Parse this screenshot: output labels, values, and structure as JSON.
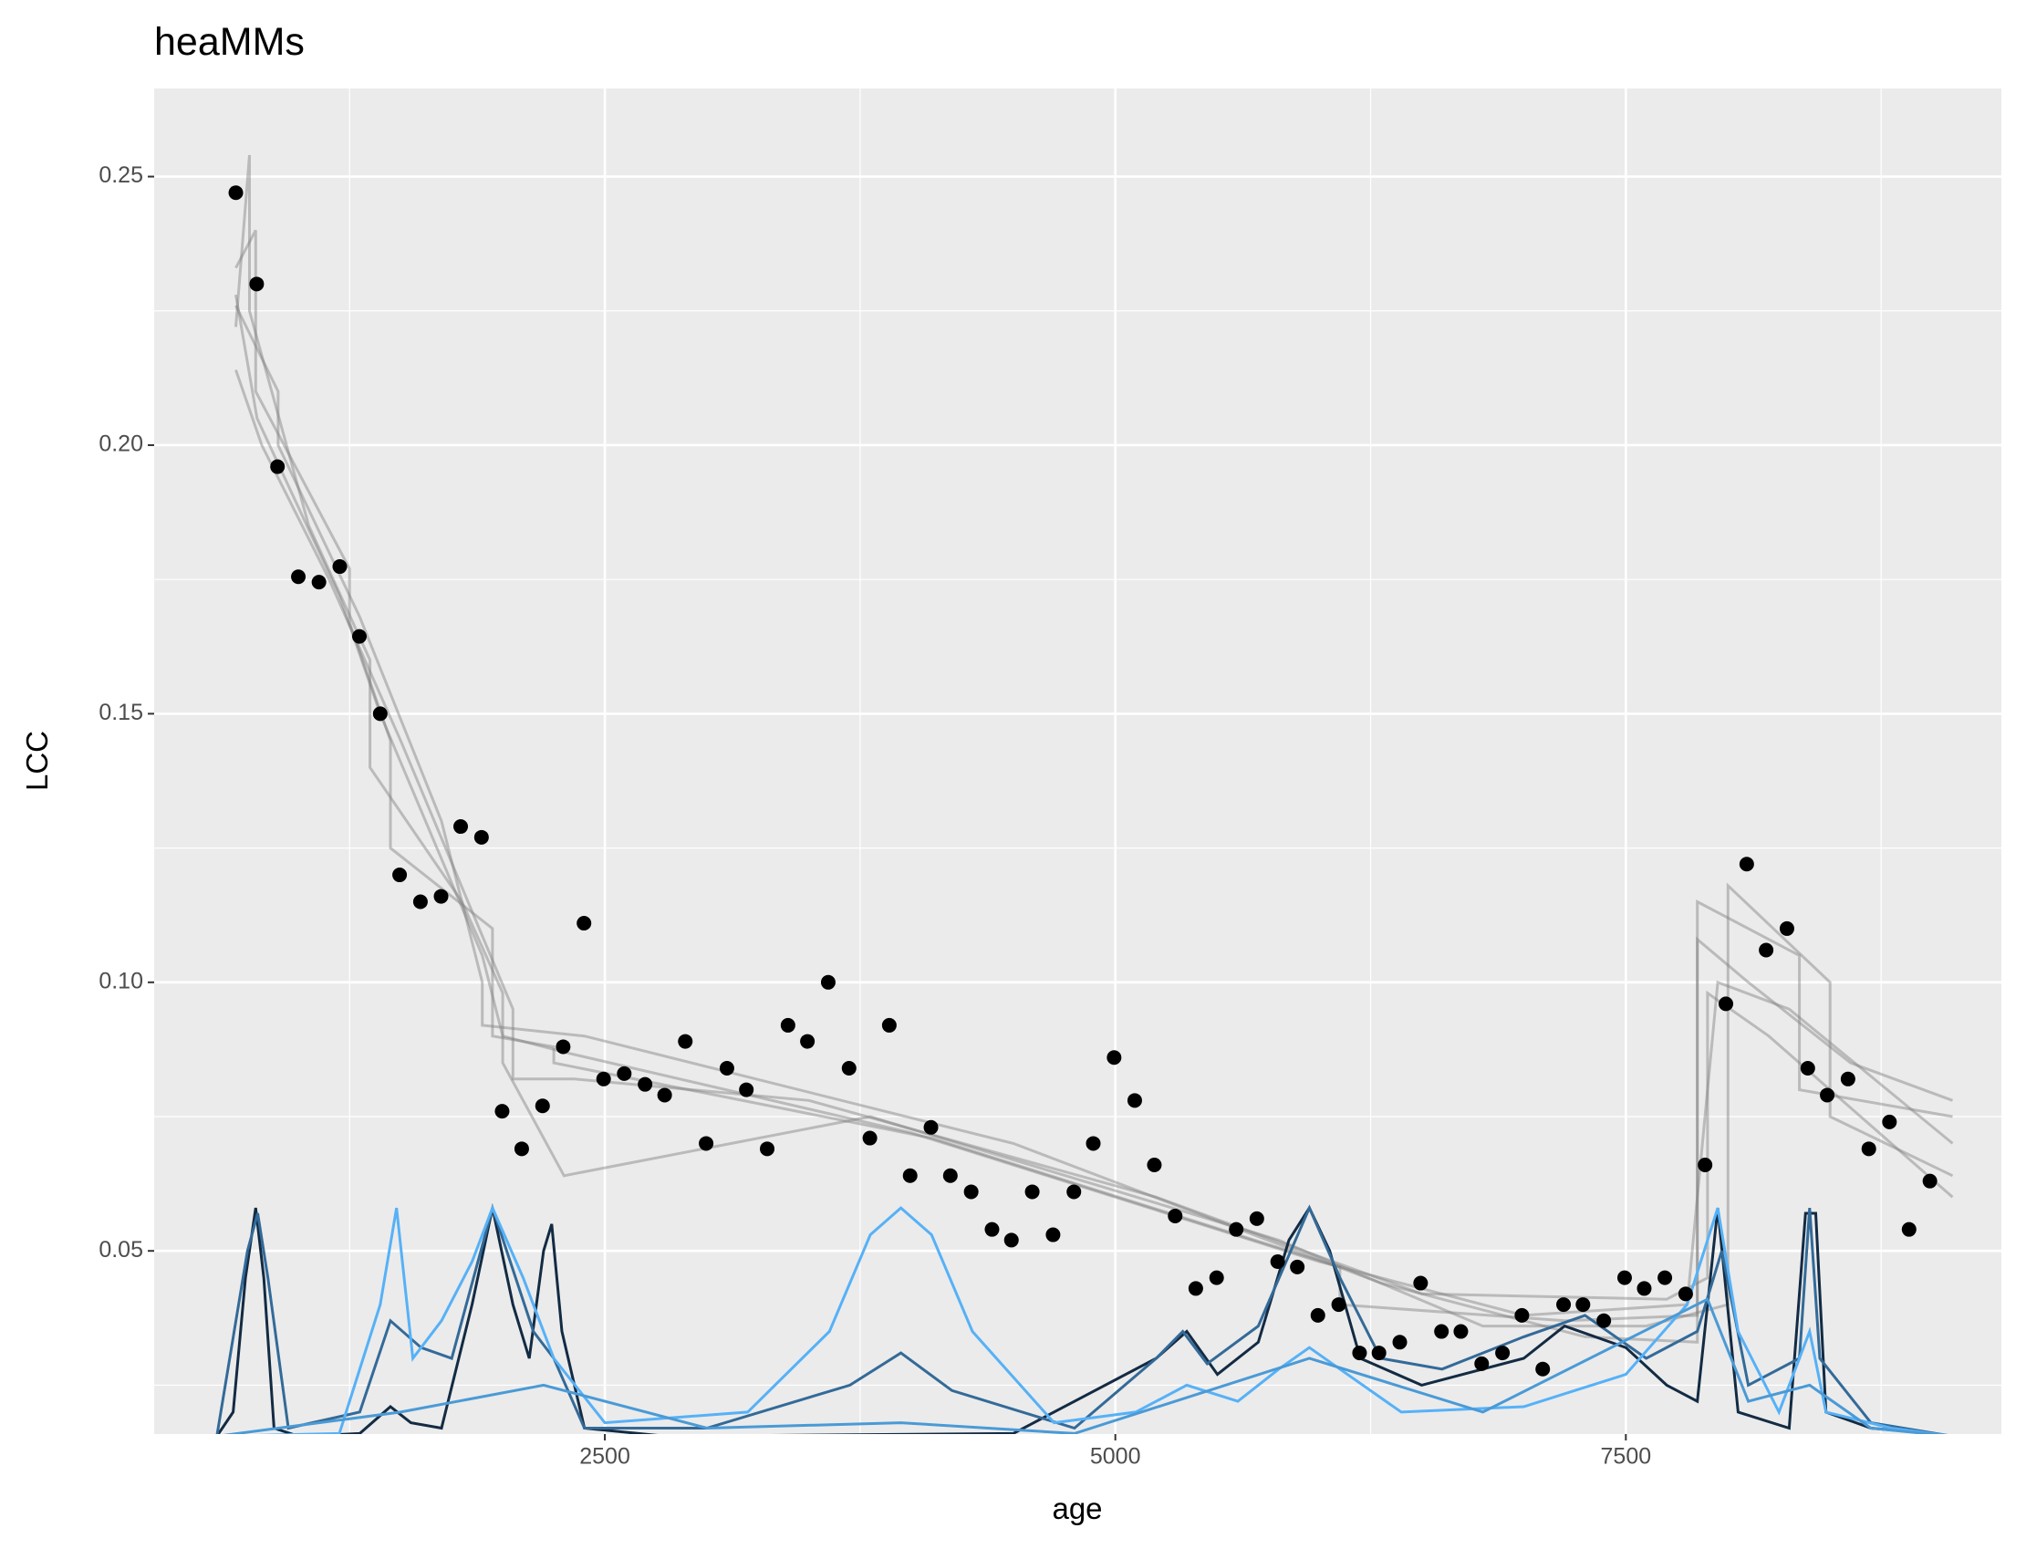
{
  "chart_data": {
    "type": "scatter",
    "title": "heaMMs",
    "x_label": "age",
    "y_label": "LCC",
    "xlim": [
      293,
      9339
    ],
    "ylim": [
      0.0159,
      0.2664
    ],
    "xticks": [
      2500,
      5000,
      7500
    ],
    "yticks": [
      0.05,
      {
        "value": 0.1,
        "label": "0.10"
      },
      0.15,
      {
        "value": 0.2,
        "label": "0.20"
      },
      0.25
    ],
    "grid": true,
    "color": "#000000",
    "x": [
      693,
      795,
      897,
      999,
      1100,
      1202,
      1298,
      1400,
      1495,
      1597,
      1698,
      1794,
      1896,
      1997,
      2093,
      2195,
      2296,
      2398,
      2494,
      2595,
      2697,
      2793,
      2894,
      2996,
      3098,
      3193,
      3295,
      3397,
      3492,
      3594,
      3696,
      3798,
      3893,
      3995,
      4097,
      4192,
      4294,
      4396,
      4491,
      4593,
      4695,
      4797,
      4892,
      4994,
      5095,
      5191,
      5293,
      5394,
      5496,
      5592,
      5693,
      5795,
      5891,
      5992,
      6094,
      6196,
      6291,
      6393,
      6495,
      6597,
      6692,
      6794,
      6896,
      6991,
      7093,
      7195,
      7290,
      7392,
      7494,
      7590,
      7691,
      7793,
      7888,
      7990,
      8092,
      8187,
      8289,
      8391,
      8486,
      8588,
      8690,
      8791,
      8887,
      8989
    ],
    "values": [
      0.247,
      0.23,
      0.196,
      0.1755,
      0.1745,
      0.1774,
      0.1644,
      0.15,
      0.12,
      0.115,
      0.116,
      0.129,
      0.127,
      0.076,
      0.069,
      0.077,
      0.088,
      0.111,
      0.082,
      0.083,
      0.081,
      0.079,
      0.089,
      0.07,
      0.084,
      0.08,
      0.069,
      0.092,
      0.089,
      0.1,
      0.084,
      0.071,
      0.092,
      0.064,
      0.073,
      0.064,
      0.061,
      0.054,
      0.052,
      0.061,
      0.053,
      0.061,
      0.07,
      0.086,
      0.078,
      0.066,
      0.0565,
      0.043,
      0.045,
      0.054,
      0.056,
      0.048,
      0.047,
      0.038,
      0.04,
      0.031,
      0.031,
      0.033,
      0.044,
      0.035,
      0.035,
      0.029,
      0.031,
      0.038,
      0.028,
      0.04,
      0.04,
      0.037,
      0.045,
      0.043,
      0.045,
      0.042,
      0.066,
      0.096,
      0.122,
      0.106,
      0.11,
      0.084,
      0.079,
      0.082,
      0.069,
      0.074,
      0.054,
      0.063
    ],
    "fits": [
      {
        "color": "#7f7f7f",
        "x": [
          693,
          797,
          797,
          1200,
          1400,
          1900,
          2000,
          2300,
          4000,
          6000,
          7000,
          7800,
          7950,
          8300,
          9100
        ],
        "y": [
          0.228,
          0.205,
          0.205,
          0.172,
          0.15,
          0.105,
          0.09,
          0.087,
          0.072,
          0.048,
          0.038,
          0.04,
          0.1,
          0.095,
          0.07
        ]
      },
      {
        "color": "#7f7f7f",
        "x": [
          693,
          790,
          790,
          1250,
          1250,
          1450,
          1450,
          1950,
          1950,
          2250,
          2250,
          4100,
          6100,
          6100,
          7200,
          7850,
          7850,
          8350,
          8350,
          9100
        ],
        "y": [
          0.233,
          0.24,
          0.21,
          0.177,
          0.167,
          0.145,
          0.125,
          0.11,
          0.09,
          0.088,
          0.085,
          0.071,
          0.047,
          0.04,
          0.037,
          0.038,
          0.115,
          0.105,
          0.08,
          0.075
        ]
      },
      {
        "color": "#7f7f7f",
        "x": [
          693,
          820,
          1150,
          1500,
          2050,
          2050,
          2350,
          3500,
          5200,
          6500,
          7700,
          7900,
          7900,
          8200,
          9100
        ],
        "y": [
          0.214,
          0.2,
          0.175,
          0.145,
          0.095,
          0.082,
          0.082,
          0.078,
          0.06,
          0.042,
          0.041,
          0.045,
          0.098,
          0.09,
          0.06
        ]
      },
      {
        "color": "#7f7f7f",
        "x": [
          693,
          760,
          760,
          1050,
          1350,
          1350,
          1800,
          2000,
          2000,
          2300,
          3800,
          5800,
          6800,
          7600,
          8000,
          8000,
          8500,
          8500,
          9100
        ],
        "y": [
          0.222,
          0.254,
          0.225,
          0.185,
          0.16,
          0.14,
          0.115,
          0.098,
          0.085,
          0.064,
          0.075,
          0.052,
          0.036,
          0.036,
          0.04,
          0.118,
          0.1,
          0.075,
          0.064
        ]
      },
      {
        "color": "#7f7f7f",
        "x": [
          693,
          900,
          900,
          1300,
          1700,
          1900,
          1900,
          2400,
          4500,
          6300,
          7300,
          7850,
          7850,
          8100,
          8600,
          9100
        ],
        "y": [
          0.226,
          0.21,
          0.2,
          0.168,
          0.13,
          0.1,
          0.092,
          0.09,
          0.07,
          0.044,
          0.034,
          0.033,
          0.108,
          0.1,
          0.085,
          0.078
        ]
      }
    ],
    "densities": [
      {
        "color": "#132B43",
        "x": [
          600,
          680,
          740,
          790,
          830,
          880,
          1000,
          1300,
          1450,
          1550,
          1700,
          1850,
          1950,
          2050,
          2130,
          2200,
          2240,
          2290,
          2400,
          2800,
          4500,
          5200,
          5350,
          5500,
          5700,
          5850,
          5950,
          6050,
          6200,
          6500,
          7000,
          7200,
          7500,
          7700,
          7850,
          7950,
          8050,
          8300,
          8380,
          8430,
          8480,
          8700,
          9000,
          9100
        ],
        "y": [
          0.0155,
          0.02,
          0.045,
          0.058,
          0.045,
          0.017,
          0.0155,
          0.016,
          0.021,
          0.018,
          0.017,
          0.04,
          0.058,
          0.04,
          0.03,
          0.05,
          0.055,
          0.035,
          0.017,
          0.0155,
          0.016,
          0.03,
          0.035,
          0.027,
          0.033,
          0.052,
          0.058,
          0.05,
          0.03,
          0.025,
          0.03,
          0.036,
          0.032,
          0.025,
          0.022,
          0.058,
          0.02,
          0.017,
          0.057,
          0.057,
          0.02,
          0.017,
          0.016,
          0.0155
        ]
      },
      {
        "color": "#336A98",
        "x": [
          600,
          750,
          800,
          850,
          950,
          1300,
          1450,
          1600,
          1750,
          1950,
          2150,
          2250,
          2400,
          3000,
          3700,
          3950,
          4200,
          4800,
          5200,
          5330,
          5450,
          5700,
          5950,
          6100,
          6300,
          6600,
          7000,
          7300,
          7600,
          7850,
          7970,
          8100,
          8350,
          8400,
          8450,
          8700,
          9100
        ],
        "y": [
          0.0155,
          0.05,
          0.057,
          0.045,
          0.017,
          0.02,
          0.037,
          0.032,
          0.03,
          0.058,
          0.035,
          0.03,
          0.017,
          0.017,
          0.025,
          0.031,
          0.024,
          0.017,
          0.03,
          0.035,
          0.029,
          0.036,
          0.058,
          0.045,
          0.03,
          0.028,
          0.034,
          0.038,
          0.03,
          0.035,
          0.05,
          0.025,
          0.03,
          0.058,
          0.03,
          0.018,
          0.0155
        ]
      },
      {
        "color": "#56B1F7",
        "x": [
          600,
          1200,
          1400,
          1480,
          1560,
          1700,
          1850,
          1950,
          2100,
          2250,
          2500,
          3200,
          3600,
          3800,
          3950,
          4100,
          4300,
          4700,
          5100,
          5350,
          5600,
          5800,
          5950,
          6100,
          6400,
          7000,
          7500,
          7800,
          7950,
          8050,
          8250,
          8400,
          8480,
          8800,
          9100
        ],
        "y": [
          0.0155,
          0.016,
          0.04,
          0.058,
          0.03,
          0.037,
          0.048,
          0.058,
          0.045,
          0.03,
          0.018,
          0.02,
          0.035,
          0.053,
          0.058,
          0.053,
          0.035,
          0.018,
          0.02,
          0.025,
          0.022,
          0.028,
          0.032,
          0.028,
          0.02,
          0.021,
          0.027,
          0.04,
          0.058,
          0.035,
          0.02,
          0.035,
          0.02,
          0.017,
          0.0155
        ]
      },
      {
        "color": "#4A9AD6",
        "x": [
          600,
          1500,
          2200,
          3000,
          3950,
          4800,
          5950,
          6800,
          7900,
          8100,
          8400,
          8700,
          9100
        ],
        "y": [
          0.0155,
          0.02,
          0.025,
          0.017,
          0.018,
          0.016,
          0.03,
          0.02,
          0.041,
          0.022,
          0.025,
          0.017,
          0.0155
        ]
      }
    ]
  }
}
